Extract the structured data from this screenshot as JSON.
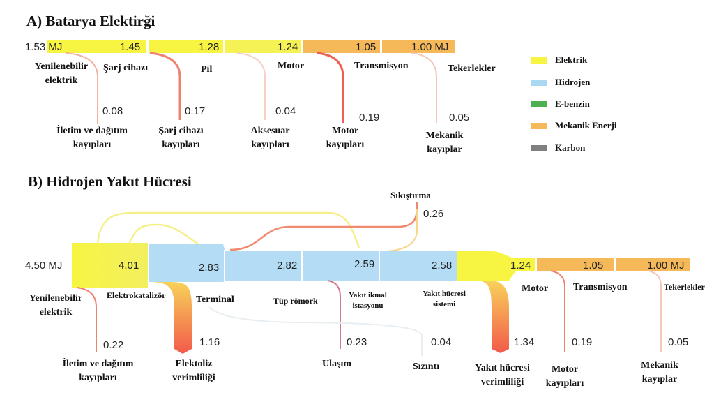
{
  "section_a": {
    "title": "A) Batarya Elektirği",
    "input": "1.53 MJ",
    "flow_values": [
      "1.45",
      "1.28",
      "1.24",
      "1.05",
      "1.00 MJ"
    ],
    "nodes": [
      "Yenilenebilir elektrik",
      "Şarj cihazı",
      "Pil",
      "Motor",
      "Transmisyon",
      "Tekerlekler"
    ],
    "losses": [
      {
        "value": "0.08",
        "label": "İletim ve dağıtım kayıpları"
      },
      {
        "value": "0.17",
        "label": "Şarj cihazı kayıpları"
      },
      {
        "value": "0.04",
        "label": "Aksesuar kayıpları"
      },
      {
        "value": "0.19",
        "label": "Motor kayıpları"
      },
      {
        "value": "0.05",
        "label": "Mekanik kayıplar"
      }
    ]
  },
  "section_b": {
    "title": "B) Hidrojen  Yakıt Hücresi",
    "input": "4.50 MJ",
    "flow_values": [
      "4.01",
      "2.83",
      "2.82",
      "2.59",
      "2.58",
      "1.24",
      "1.05",
      "1.00 MJ"
    ],
    "nodes": [
      "Yenilenebilir elektrik",
      "Elektrokatalizör",
      "Terminal",
      "Tüp römork",
      "Yakıt ikmal istasyonu",
      "Yakıt hücresi sistemi",
      "Motor",
      "Transmisyon",
      "Tekerlekler"
    ],
    "compression": {
      "label": "Sıkıştırma",
      "value": "0.26"
    },
    "losses": [
      {
        "value": "0.22",
        "label": "İletim ve dağıtım kayıpları"
      },
      {
        "value": "1.16",
        "label": "Elektoliz verimliliği"
      },
      {
        "value": "0.23",
        "label": "Ulaşım"
      },
      {
        "value": "0.04",
        "label": "Sızıntı"
      },
      {
        "value": "1.34",
        "label": "Yakıt hücresi verimliliği"
      },
      {
        "value": "0.19",
        "label": "Motor kayıpları"
      },
      {
        "value": "0.05",
        "label": "Mekanik kayıplar"
      }
    ]
  },
  "legend": [
    {
      "label": "Elektrik",
      "color": "#f5f542"
    },
    {
      "label": "Hidrojen",
      "color": "#a9d8f2"
    },
    {
      "label": "E-benzin",
      "color": "#4caf50"
    },
    {
      "label": "Mekanik Enerji",
      "color": "#f5b95a"
    },
    {
      "label": "Karbon",
      "color": "#808080"
    }
  ]
}
